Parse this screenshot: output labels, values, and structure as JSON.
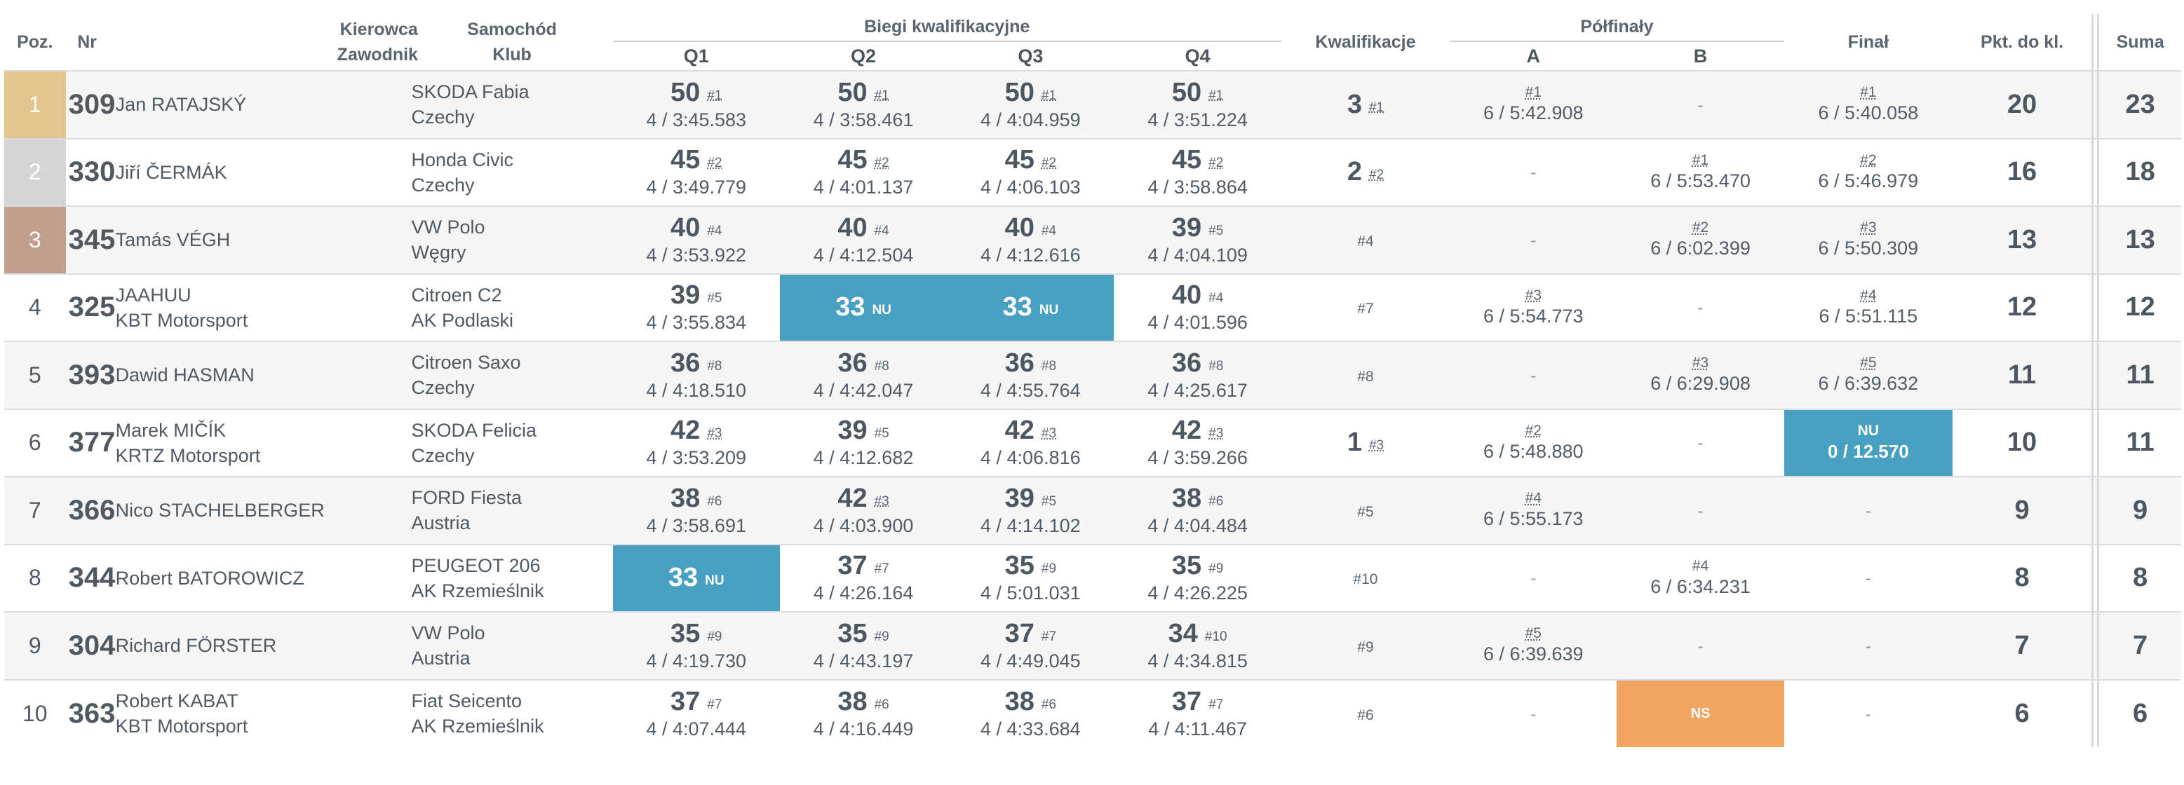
{
  "header": {
    "poz": "Poz.",
    "nr": "Nr",
    "driver_line1": "Kierowca",
    "driver_line2": "Zawodnik",
    "car_line1": "Samochód",
    "car_line2": "Klub",
    "heats_group": "Biegi kwalifikacyjne",
    "q1": "Q1",
    "q2": "Q2",
    "q3": "Q3",
    "q4": "Q4",
    "qualification": "Kwalifikacje",
    "semifinals_group": "Półfinały",
    "semi_a": "A",
    "semi_b": "B",
    "final": "Finał",
    "points_to_class": "Pkt. do kl.",
    "sum": "Suma"
  },
  "colors": {
    "gold": "#e3c48d",
    "silver": "#d5d5d5",
    "bronze": "#c29e8c",
    "nu_blue": "#479fc2",
    "ns_orange": "#f0a560"
  },
  "rows": [
    {
      "poz": "1",
      "nr": "309",
      "driver": "Jan RATAJSKÝ",
      "team": "",
      "car": "SKODA Fabia",
      "club": "Czechy",
      "q": [
        {
          "pts": "50",
          "rank": "#1",
          "time": "4 / 3:45.583"
        },
        {
          "pts": "50",
          "rank": "#1",
          "time": "4 / 3:58.461"
        },
        {
          "pts": "50",
          "rank": "#1",
          "time": "4 / 4:04.959"
        },
        {
          "pts": "50",
          "rank": "#1",
          "time": "4 / 3:51.224"
        }
      ],
      "kw": {
        "pts": "3",
        "rank": "#1"
      },
      "semi_a": {
        "rank": "#1",
        "time": "6 / 5:42.908"
      },
      "semi_b": {
        "dash": "-"
      },
      "final": {
        "rank": "#1",
        "time": "6 / 5:40.058"
      },
      "pkt": "20",
      "sum": "23"
    },
    {
      "poz": "2",
      "nr": "330",
      "driver": "Jiří ČERMÁK",
      "team": "",
      "car": "Honda Civic",
      "club": "Czechy",
      "q": [
        {
          "pts": "45",
          "rank": "#2",
          "time": "4 / 3:49.779"
        },
        {
          "pts": "45",
          "rank": "#2",
          "time": "4 / 4:01.137"
        },
        {
          "pts": "45",
          "rank": "#2",
          "time": "4 / 4:06.103"
        },
        {
          "pts": "45",
          "rank": "#2",
          "time": "4 / 3:58.864"
        }
      ],
      "kw": {
        "pts": "2",
        "rank": "#2"
      },
      "semi_a": {
        "dash": "-"
      },
      "semi_b": {
        "rank": "#1",
        "time": "6 / 5:53.470"
      },
      "final": {
        "rank": "#2",
        "time": "6 / 5:46.979"
      },
      "pkt": "16",
      "sum": "18"
    },
    {
      "poz": "3",
      "nr": "345",
      "driver": "Tamás VÉGH",
      "team": "",
      "car": "VW Polo",
      "club": "Węgry",
      "q": [
        {
          "pts": "40",
          "rank": "#4",
          "time": "4 / 3:53.922"
        },
        {
          "pts": "40",
          "rank": "#4",
          "time": "4 / 4:12.504"
        },
        {
          "pts": "40",
          "rank": "#4",
          "time": "4 / 4:12.616"
        },
        {
          "pts": "39",
          "rank": "#5",
          "time": "4 / 4:04.109"
        }
      ],
      "kw": {
        "rank_only": "#4"
      },
      "semi_a": {
        "dash": "-"
      },
      "semi_b": {
        "rank": "#2",
        "time": "6 / 6:02.399"
      },
      "final": {
        "rank": "#3",
        "time": "6 / 5:50.309"
      },
      "pkt": "13",
      "sum": "13"
    },
    {
      "poz": "4",
      "nr": "325",
      "driver": "JAAHUU",
      "team": "KBT Motorsport",
      "car": "Citroen C2",
      "club": "AK Podlaski",
      "q": [
        {
          "pts": "39",
          "rank": "#5",
          "time": "4 / 3:55.834"
        },
        {
          "pts": "33",
          "rank": "NU",
          "nu": true
        },
        {
          "pts": "33",
          "rank": "NU",
          "nu": true
        },
        {
          "pts": "40",
          "rank": "#4",
          "time": "4 / 4:01.596"
        }
      ],
      "kw": {
        "rank_only": "#7"
      },
      "semi_a": {
        "rank": "#3",
        "time": "6 / 5:54.773"
      },
      "semi_b": {
        "dash": "-"
      },
      "final": {
        "rank": "#4",
        "time": "6 / 5:51.115"
      },
      "pkt": "12",
      "sum": "12"
    },
    {
      "poz": "5",
      "nr": "393",
      "driver": "Dawid HASMAN",
      "team": "",
      "car": "Citroen Saxo",
      "club": "Czechy",
      "q": [
        {
          "pts": "36",
          "rank": "#8",
          "time": "4 / 4:18.510"
        },
        {
          "pts": "36",
          "rank": "#8",
          "time": "4 / 4:42.047"
        },
        {
          "pts": "36",
          "rank": "#8",
          "time": "4 / 4:55.764"
        },
        {
          "pts": "36",
          "rank": "#8",
          "time": "4 / 4:25.617"
        }
      ],
      "kw": {
        "rank_only": "#8"
      },
      "semi_a": {
        "dash": "-"
      },
      "semi_b": {
        "rank": "#3",
        "time": "6 / 6:29.908"
      },
      "final": {
        "rank": "#5",
        "time": "6 / 6:39.632"
      },
      "pkt": "11",
      "sum": "11"
    },
    {
      "poz": "6",
      "nr": "377",
      "driver": "Marek MIČÍK",
      "team": "KRTZ Motorsport",
      "car": "SKODA Felicia",
      "club": "Czechy",
      "q": [
        {
          "pts": "42",
          "rank": "#3",
          "time": "4 / 3:53.209"
        },
        {
          "pts": "39",
          "rank": "#5",
          "time": "4 / 4:12.682"
        },
        {
          "pts": "42",
          "rank": "#3",
          "time": "4 / 4:06.816"
        },
        {
          "pts": "42",
          "rank": "#3",
          "time": "4 / 3:59.266"
        }
      ],
      "kw": {
        "pts": "1",
        "rank": "#3"
      },
      "semi_a": {
        "rank": "#2",
        "time": "6 / 5:48.880"
      },
      "semi_b": {
        "dash": "-"
      },
      "final": {
        "rank": "NU",
        "time": "0 / 12.570",
        "nu": true
      },
      "pkt": "10",
      "sum": "11"
    },
    {
      "poz": "7",
      "nr": "366",
      "driver": "Nico STACHELBERGER",
      "team": "",
      "car": "FORD Fiesta",
      "club": "Austria",
      "q": [
        {
          "pts": "38",
          "rank": "#6",
          "time": "4 / 3:58.691"
        },
        {
          "pts": "42",
          "rank": "#3",
          "time": "4 / 4:03.900"
        },
        {
          "pts": "39",
          "rank": "#5",
          "time": "4 / 4:14.102"
        },
        {
          "pts": "38",
          "rank": "#6",
          "time": "4 / 4:04.484"
        }
      ],
      "kw": {
        "rank_only": "#5"
      },
      "semi_a": {
        "rank": "#4",
        "time": "6 / 5:55.173"
      },
      "semi_b": {
        "dash": "-"
      },
      "final": {
        "dash": "-"
      },
      "pkt": "9",
      "sum": "9"
    },
    {
      "poz": "8",
      "nr": "344",
      "driver": "Robert BATOROWICZ",
      "team": "",
      "car": "PEUGEOT 206",
      "club": "AK Rzemieślnik",
      "q": [
        {
          "pts": "33",
          "rank": "NU",
          "nu": true
        },
        {
          "pts": "37",
          "rank": "#7",
          "time": "4 / 4:26.164"
        },
        {
          "pts": "35",
          "rank": "#9",
          "time": "4 / 5:01.031"
        },
        {
          "pts": "35",
          "rank": "#9",
          "time": "4 / 4:26.225"
        }
      ],
      "kw": {
        "rank_only": "#10"
      },
      "semi_a": {
        "dash": "-"
      },
      "semi_b": {
        "rank": "#4",
        "time": "6 / 6:34.231"
      },
      "final": {
        "dash": "-"
      },
      "pkt": "8",
      "sum": "8"
    },
    {
      "poz": "9",
      "nr": "304",
      "driver": "Richard FÖRSTER",
      "team": "",
      "car": "VW Polo",
      "club": "Austria",
      "q": [
        {
          "pts": "35",
          "rank": "#9",
          "time": "4 / 4:19.730"
        },
        {
          "pts": "35",
          "rank": "#9",
          "time": "4 / 4:43.197"
        },
        {
          "pts": "37",
          "rank": "#7",
          "time": "4 / 4:49.045"
        },
        {
          "pts": "34",
          "rank": "#10",
          "time": "4 / 4:34.815"
        }
      ],
      "kw": {
        "rank_only": "#9"
      },
      "semi_a": {
        "rank": "#5",
        "time": "6 / 6:39.639"
      },
      "semi_b": {
        "dash": "-"
      },
      "final": {
        "dash": "-"
      },
      "pkt": "7",
      "sum": "7"
    },
    {
      "poz": "10",
      "nr": "363",
      "driver": "Robert KABAT",
      "team": "KBT Motorsport",
      "car": "Fiat Seicento",
      "club": "AK Rzemieślnik",
      "q": [
        {
          "pts": "37",
          "rank": "#7",
          "time": "4 / 4:07.444"
        },
        {
          "pts": "38",
          "rank": "#6",
          "time": "4 / 4:16.449"
        },
        {
          "pts": "38",
          "rank": "#6",
          "time": "4 / 4:33.684"
        },
        {
          "pts": "37",
          "rank": "#7",
          "time": "4 / 4:11.467"
        }
      ],
      "kw": {
        "rank_only": "#6"
      },
      "semi_a": {
        "dash": "-"
      },
      "semi_b": {
        "status": "NS"
      },
      "final": {
        "dash": "-"
      },
      "pkt": "6",
      "sum": "6"
    }
  ]
}
